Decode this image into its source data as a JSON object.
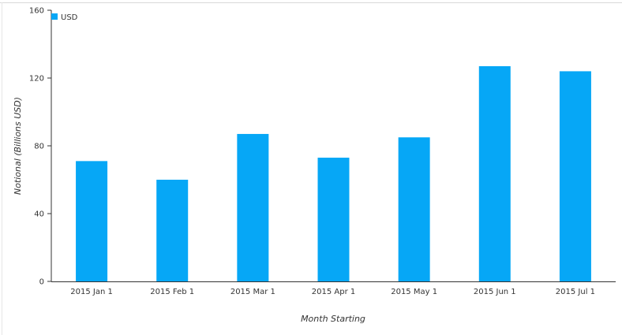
{
  "chart_data": {
    "type": "bar",
    "categories": [
      "2015 Jan 1",
      "2015 Feb 1",
      "2015 Mar 1",
      "2015 Apr 1",
      "2015 May 1",
      "2015 Jun 1",
      "2015 Jul 1"
    ],
    "series": [
      {
        "name": "USD",
        "values": [
          71,
          60,
          87,
          73,
          85,
          127,
          124
        ],
        "color": "#06a7f6"
      }
    ],
    "xlabel": "Month Starting",
    "ylabel": "Notional (Billions USD)",
    "ylim": [
      0,
      160
    ],
    "yticks": [
      0,
      40,
      80,
      120,
      160
    ],
    "grid": false,
    "legend_position": "top-left"
  }
}
